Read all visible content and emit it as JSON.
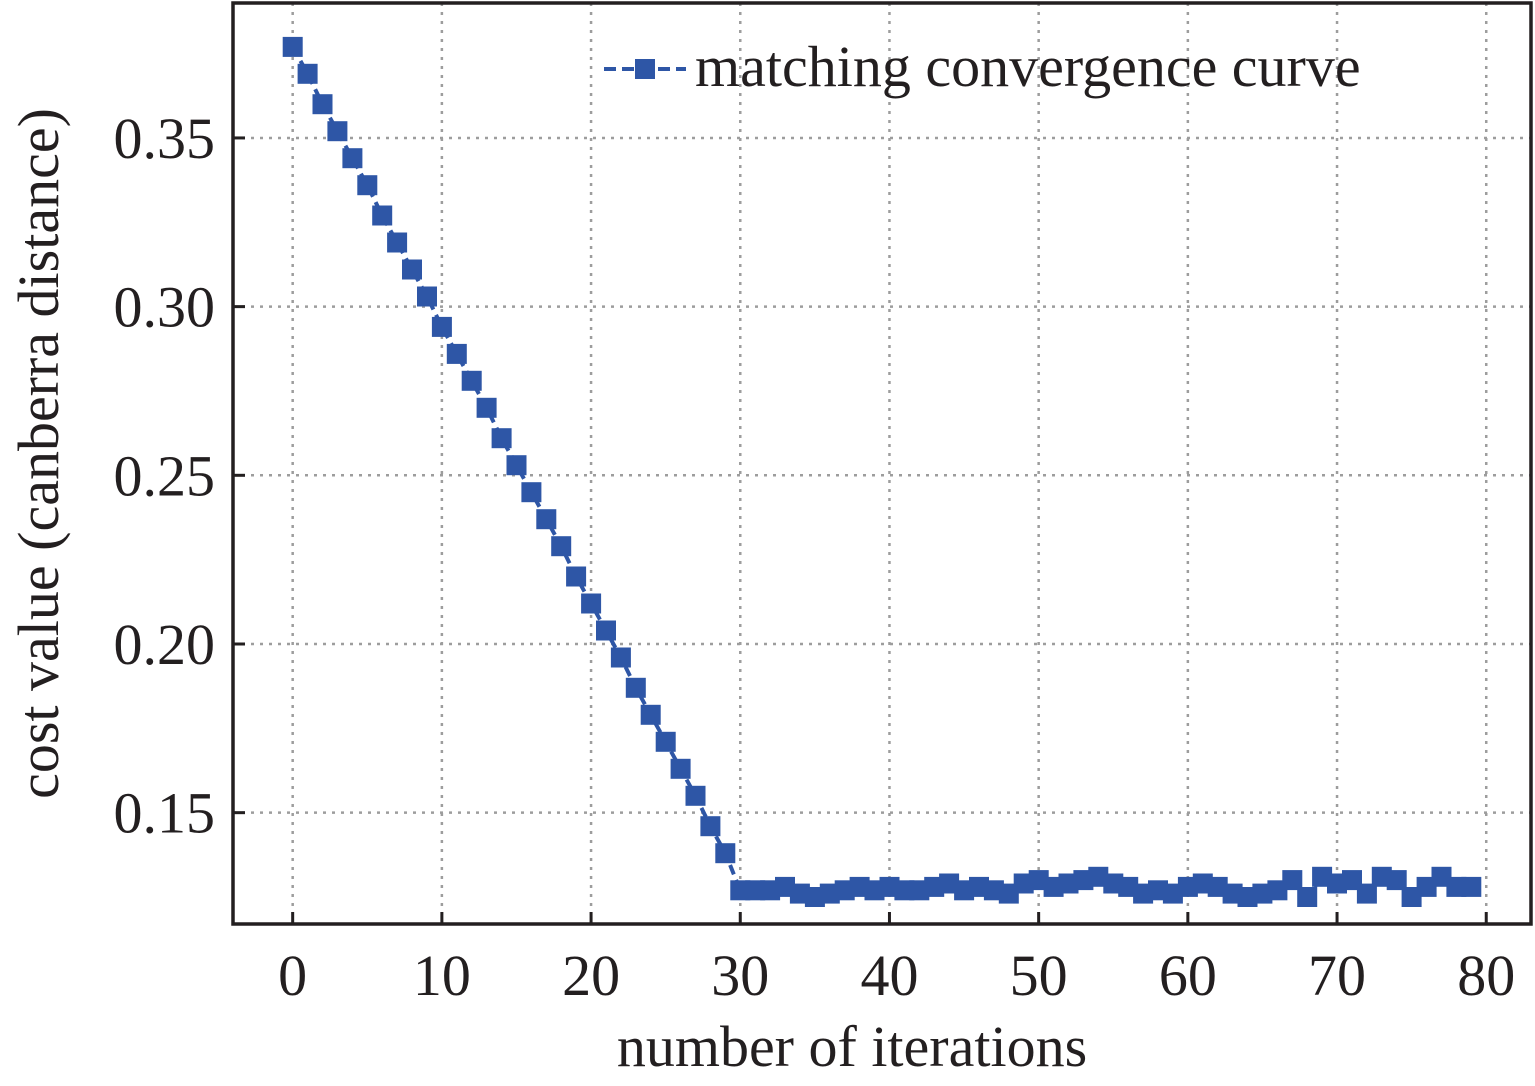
{
  "chart_data": {
    "type": "line",
    "title": "",
    "xlabel": "number of iterations",
    "ylabel": "cost value (canberra distance)",
    "xlim": [
      -4,
      83
    ],
    "ylim": [
      0.117,
      0.39
    ],
    "xticks": [
      0,
      10,
      20,
      30,
      40,
      50,
      60,
      70,
      80
    ],
    "xtick_labels": [
      "0",
      "10",
      "20",
      "30",
      "40",
      "50",
      "60",
      "70",
      "80"
    ],
    "yticks": [
      0.15,
      0.2,
      0.25,
      0.3,
      0.35
    ],
    "ytick_labels": [
      "0.15",
      "0.20",
      "0.25",
      "0.30",
      "0.35"
    ],
    "grid": true,
    "legend_position": "top-right",
    "series": [
      {
        "name": "matching convergence curve",
        "color": "#2e56a6",
        "line_style": "dashed",
        "marker": "square",
        "x": [
          0,
          1,
          2,
          3,
          4,
          5,
          6,
          7,
          8,
          9,
          10,
          11,
          12,
          13,
          14,
          15,
          16,
          17,
          18,
          19,
          20,
          21,
          22,
          23,
          24,
          25,
          26,
          27,
          28,
          29,
          30,
          31,
          32,
          33,
          34,
          35,
          36,
          37,
          38,
          39,
          40,
          41,
          42,
          43,
          44,
          45,
          46,
          47,
          48,
          49,
          50,
          51,
          52,
          53,
          54,
          55,
          56,
          57,
          58,
          59,
          60,
          61,
          62,
          63,
          64,
          65,
          66,
          67,
          68,
          69,
          70,
          71,
          72,
          73,
          74,
          75,
          76,
          77,
          78,
          79
        ],
        "values": [
          0.377,
          0.369,
          0.36,
          0.352,
          0.344,
          0.336,
          0.327,
          0.319,
          0.311,
          0.303,
          0.294,
          0.286,
          0.278,
          0.27,
          0.261,
          0.253,
          0.245,
          0.237,
          0.229,
          0.22,
          0.212,
          0.204,
          0.196,
          0.187,
          0.179,
          0.171,
          0.163,
          0.155,
          0.146,
          0.138,
          0.127,
          0.127,
          0.127,
          0.128,
          0.126,
          0.125,
          0.126,
          0.127,
          0.128,
          0.127,
          0.128,
          0.127,
          0.127,
          0.128,
          0.129,
          0.127,
          0.128,
          0.127,
          0.126,
          0.129,
          0.13,
          0.128,
          0.129,
          0.13,
          0.131,
          0.129,
          0.128,
          0.126,
          0.127,
          0.126,
          0.128,
          0.129,
          0.128,
          0.126,
          0.125,
          0.126,
          0.127,
          0.13,
          0.125,
          0.131,
          0.129,
          0.13,
          0.126,
          0.131,
          0.13,
          0.125,
          0.128,
          0.131,
          0.128,
          0.128
        ]
      }
    ]
  }
}
